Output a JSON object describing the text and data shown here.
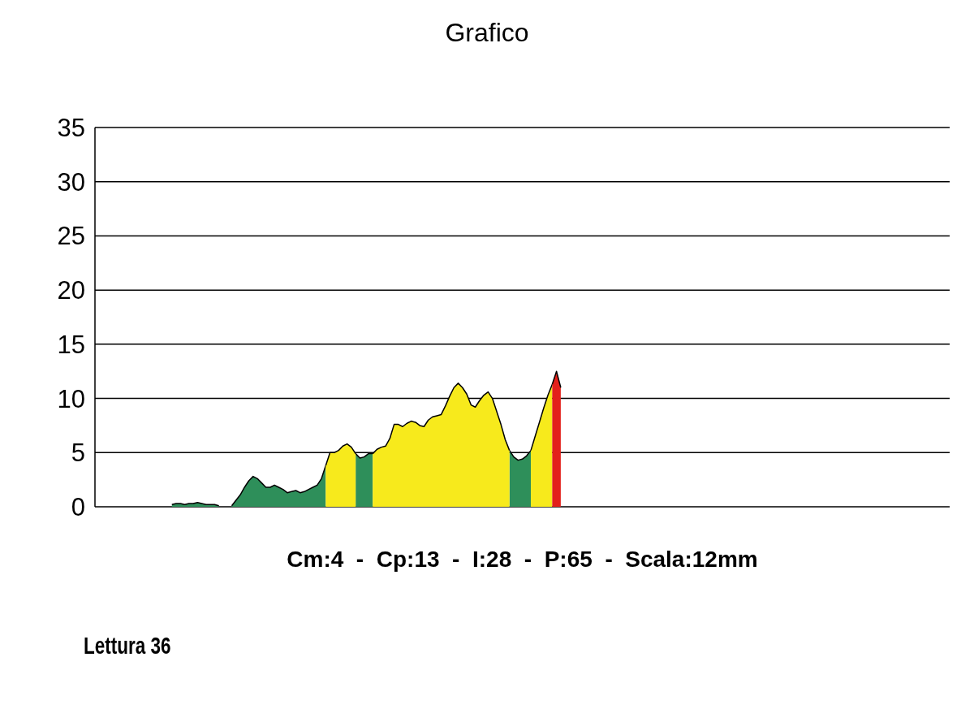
{
  "chart_data": {
    "type": "area",
    "title": "Grafico",
    "xlabel": "Cm:4  -  Cp:13  -  I:28  -  P:65  -  Scala:12mm",
    "annotations": [
      "Lettura 36"
    ],
    "categories": [
      null,
      null,
      null,
      null,
      null,
      null,
      null,
      null,
      null,
      null,
      null,
      null,
      null,
      null,
      null,
      null,
      null,
      null,
      null,
      null,
      null,
      null,
      null,
      null,
      null,
      null,
      null,
      null,
      null,
      null,
      null,
      null,
      null,
      null,
      null,
      null,
      null,
      null,
      null,
      null,
      null,
      null,
      null,
      null,
      null,
      null,
      null,
      null,
      null,
      null,
      null,
      null,
      null,
      null,
      null,
      null,
      null,
      null,
      null,
      null,
      null,
      null,
      null,
      null,
      null,
      null,
      null,
      null,
      null,
      null,
      null,
      null,
      null,
      null,
      null,
      null,
      null,
      null,
      null,
      null,
      null,
      null,
      null,
      null,
      null,
      null,
      null,
      null,
      null,
      null,
      null,
      null,
      null,
      null,
      null,
      null,
      null,
      null,
      null,
      null,
      null,
      null,
      null,
      null,
      null,
      null,
      null,
      null,
      null,
      null,
      null,
      null,
      null,
      null,
      null,
      null,
      null,
      null,
      null,
      null,
      null,
      null,
      null,
      null,
      null,
      null,
      null,
      null,
      null,
      null,
      null,
      null,
      null,
      null,
      null,
      null,
      null,
      null,
      null,
      null,
      null,
      null,
      null,
      null,
      null,
      null,
      null,
      null,
      null,
      null,
      null,
      null,
      null,
      null,
      null,
      null,
      null,
      null,
      null,
      null,
      null,
      null,
      null,
      null,
      null,
      null,
      null,
      null,
      null,
      null,
      null,
      null,
      null,
      null,
      null,
      null,
      null,
      null,
      null,
      null,
      null,
      null,
      null,
      null,
      null,
      null,
      null,
      null,
      null,
      null,
      null,
      null,
      null,
      null,
      null,
      null,
      null,
      null,
      null,
      null,
      null
    ],
    "series": [
      {
        "color": "#2e8f5a",
        "values": [
          null,
          null,
          null,
          null,
          null,
          null,
          null,
          null,
          null,
          null,
          null,
          null,
          null,
          null,
          null,
          null,
          null,
          null,
          0.2,
          0.3,
          0.3,
          0.2,
          0.3,
          0.3,
          0.4,
          0.3,
          0.2,
          0.2,
          0.2,
          0.1,
          null,
          null,
          0.1,
          0.6,
          1.1,
          1.8,
          2.4,
          2.8,
          2.6,
          2.2,
          1.8,
          1.8,
          2.0,
          1.8,
          1.6,
          1.3,
          1.4,
          1.5,
          1.3,
          1.4,
          1.6,
          1.8,
          2.0,
          2.6,
          3.8,
          null,
          null,
          null,
          null,
          null,
          null,
          4.9,
          4.5,
          4.6,
          4.9,
          4.9,
          null,
          null,
          null,
          null,
          null,
          null,
          null,
          null,
          null,
          null,
          null,
          null,
          null,
          null,
          null,
          null,
          null,
          null,
          null,
          null,
          null,
          null,
          null,
          null,
          null,
          null,
          null,
          null,
          null,
          null,
          null,
          5.2,
          4.6,
          4.3,
          4.4,
          4.7,
          5.2,
          null,
          null,
          null,
          null,
          null,
          null,
          null,
          null,
          null,
          null,
          null,
          null,
          null,
          null,
          null,
          null,
          null,
          null,
          null,
          null,
          null,
          null,
          null,
          null,
          null,
          null,
          null,
          null,
          null,
          null,
          null,
          null,
          null,
          null,
          null,
          null,
          null,
          null,
          null,
          null,
          null,
          null,
          null,
          null,
          null,
          null,
          null,
          null,
          null,
          null,
          null,
          null,
          null,
          null,
          null,
          null,
          null,
          null,
          null,
          null,
          null,
          null,
          null,
          null,
          null,
          null,
          null,
          null,
          null,
          null,
          null,
          null,
          null,
          null,
          null,
          null,
          null,
          null,
          null,
          null,
          null,
          null,
          null,
          null,
          null,
          null,
          null,
          null,
          null,
          null,
          null,
          null,
          null,
          null,
          null,
          null,
          null,
          null
        ]
      },
      {
        "color": "#f7ea1c",
        "values": [
          null,
          null,
          null,
          null,
          null,
          null,
          null,
          null,
          null,
          null,
          null,
          null,
          null,
          null,
          null,
          null,
          null,
          null,
          null,
          null,
          null,
          null,
          null,
          null,
          null,
          null,
          null,
          null,
          null,
          null,
          null,
          null,
          null,
          null,
          null,
          null,
          null,
          null,
          null,
          null,
          null,
          null,
          null,
          null,
          null,
          null,
          null,
          null,
          null,
          null,
          null,
          null,
          null,
          null,
          3.8,
          5.0,
          5.0,
          5.2,
          5.6,
          5.8,
          5.5,
          4.9,
          null,
          null,
          null,
          4.9,
          5.3,
          5.5,
          5.6,
          6.3,
          7.6,
          7.6,
          7.4,
          7.7,
          7.9,
          7.8,
          7.5,
          7.4,
          8.0,
          8.3,
          8.4,
          8.5,
          9.3,
          10.2,
          11.0,
          11.4,
          11.0,
          10.4,
          9.4,
          9.2,
          9.8,
          10.3,
          10.6,
          10.0,
          8.8,
          7.6,
          6.2,
          5.2,
          null,
          null,
          null,
          null,
          5.2,
          6.5,
          7.8,
          9.1,
          10.3,
          11.3,
          null,
          null,
          null,
          null,
          null,
          null,
          null,
          null,
          null,
          null,
          null,
          null,
          null,
          null,
          null,
          null,
          null,
          null,
          null,
          null,
          null,
          null,
          null,
          null,
          null,
          null,
          null,
          null,
          null,
          null,
          null,
          null,
          null,
          null,
          null,
          null,
          null,
          null,
          null,
          null,
          null,
          null,
          null,
          null,
          null,
          null,
          null,
          null,
          null,
          null,
          null,
          null,
          null,
          null,
          null,
          null,
          null,
          null,
          null,
          null,
          null,
          null,
          null,
          null,
          null,
          null,
          null,
          null,
          null,
          null,
          null,
          null,
          null,
          null,
          null,
          null,
          null,
          null,
          null,
          null,
          null,
          null,
          null,
          null,
          null,
          null,
          null,
          null,
          null,
          null,
          null,
          null,
          null
        ]
      },
      {
        "color": "#e3201b",
        "values": [
          null,
          null,
          null,
          null,
          null,
          null,
          null,
          null,
          null,
          null,
          null,
          null,
          null,
          null,
          null,
          null,
          null,
          null,
          null,
          null,
          null,
          null,
          null,
          null,
          null,
          null,
          null,
          null,
          null,
          null,
          null,
          null,
          null,
          null,
          null,
          null,
          null,
          null,
          null,
          null,
          null,
          null,
          null,
          null,
          null,
          null,
          null,
          null,
          null,
          null,
          null,
          null,
          null,
          null,
          null,
          null,
          null,
          null,
          null,
          null,
          null,
          null,
          null,
          null,
          null,
          null,
          null,
          null,
          null,
          null,
          null,
          null,
          null,
          null,
          null,
          null,
          null,
          null,
          null,
          null,
          null,
          null,
          null,
          null,
          null,
          null,
          null,
          null,
          null,
          null,
          null,
          null,
          null,
          null,
          null,
          null,
          null,
          null,
          null,
          null,
          null,
          null,
          null,
          null,
          null,
          null,
          null,
          11.3,
          12.5,
          11.0,
          null,
          null,
          null,
          null,
          null,
          null,
          null,
          null,
          null,
          null,
          null,
          null,
          null,
          null,
          null,
          null,
          null,
          null,
          null,
          null,
          null,
          null,
          null,
          null,
          null,
          null,
          null,
          null,
          null,
          null,
          null,
          null,
          null,
          null,
          null,
          null,
          null,
          null,
          null,
          null,
          null,
          null,
          null,
          null,
          null,
          null,
          null,
          null,
          null,
          null,
          null,
          null,
          null,
          null,
          null,
          null,
          null,
          null,
          null,
          null,
          null,
          null,
          null,
          null,
          null,
          null,
          null,
          null,
          null,
          null,
          null,
          null,
          null,
          null,
          null,
          null,
          null,
          null,
          null,
          null,
          null,
          null,
          null,
          null,
          null,
          null,
          null,
          null,
          null,
          null,
          null
        ]
      }
    ],
    "ylim": [
      0,
      35
    ],
    "yticks": [
      0,
      5,
      10,
      15,
      20,
      25,
      30,
      35
    ],
    "grid": "y"
  }
}
